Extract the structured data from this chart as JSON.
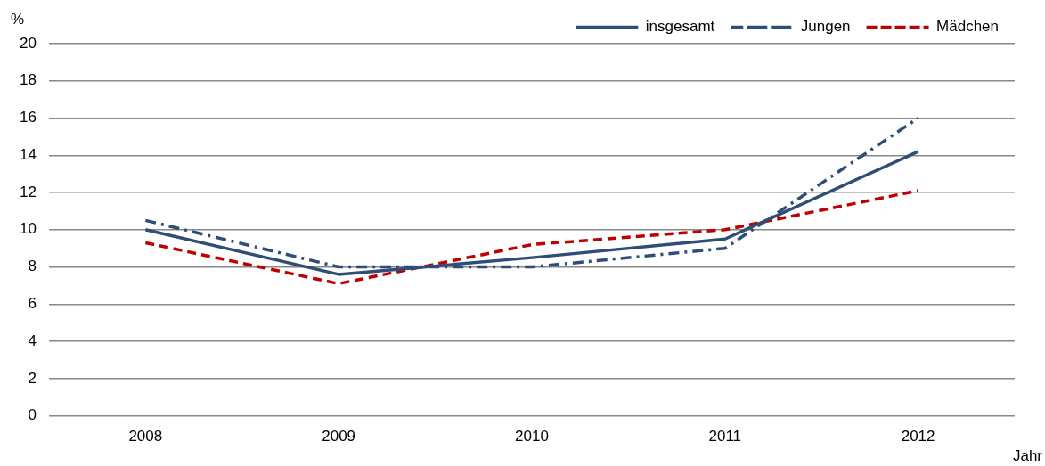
{
  "chart_data": {
    "type": "line",
    "ylabel": "%",
    "xlabel": "Jahr",
    "categories": [
      "2008",
      "2009",
      "2010",
      "2011",
      "2012"
    ],
    "series": [
      {
        "name": "insgesamt",
        "color": "#2e4e78",
        "line_style": "solid",
        "values": [
          10.0,
          7.6,
          8.5,
          9.5,
          14.2
        ]
      },
      {
        "name": "Jungen",
        "color": "#2e4e78",
        "line_style": "dashdot",
        "values": [
          10.5,
          8.0,
          8.0,
          9.0,
          16.0
        ]
      },
      {
        "name": "Mädchen",
        "color": "#c00000",
        "line_style": "dashed",
        "values": [
          9.3,
          7.1,
          9.2,
          10.0,
          12.1
        ]
      }
    ],
    "ylim": [
      0,
      20
    ],
    "yticks": [
      0,
      2,
      4,
      6,
      8,
      10,
      12,
      14,
      16,
      18,
      20
    ],
    "grid": "y",
    "legend": "top right",
    "marker": "none"
  }
}
